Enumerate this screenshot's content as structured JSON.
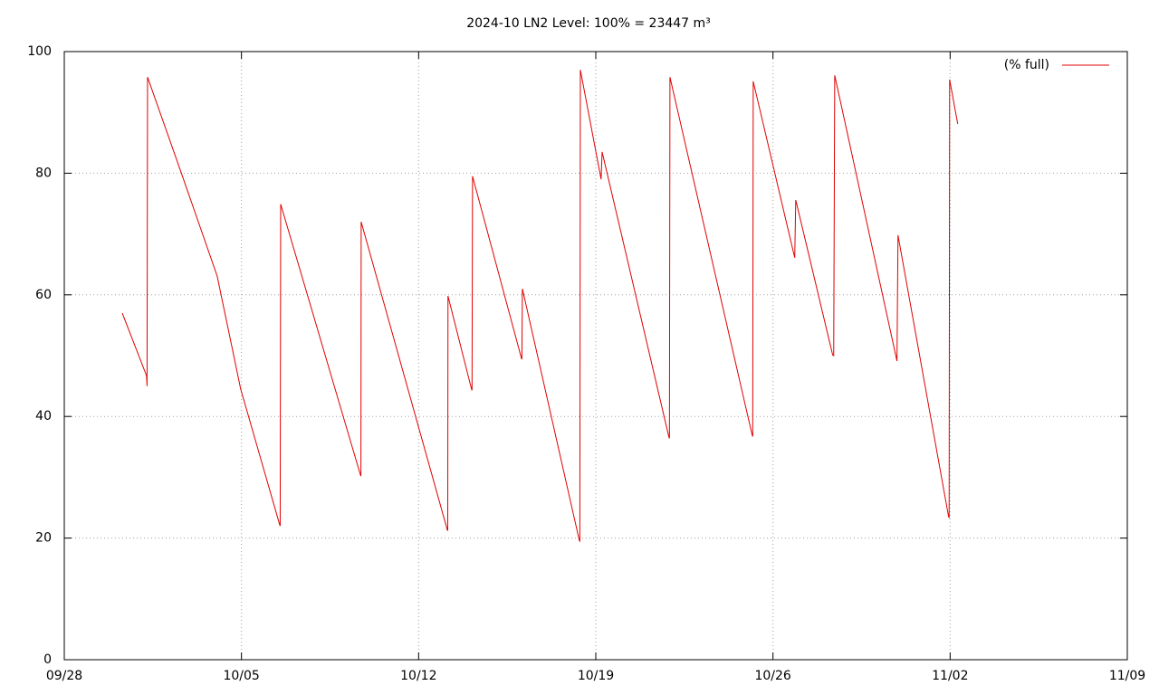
{
  "chart_data": {
    "type": "line",
    "title": "2024-10 LN2 Level: 100% = 23447 m³",
    "x": [
      2.29,
      3.25,
      3.27,
      3.29,
      4.61,
      6.04,
      6.97,
      8.51,
      8.53,
      8.55,
      11.7,
      11.72,
      11.73,
      15.13,
      15.15,
      15.16,
      16.09,
      16.11,
      16.13,
      18.06,
      18.08,
      18.1,
      20.35,
      20.37,
      20.39,
      21.21,
      21.25,
      23.89,
      23.91,
      23.93,
      27.18,
      27.2,
      27.22,
      28.86,
      28.9,
      30.36,
      30.4,
      30.44,
      32.9,
      32.94,
      34.94,
      34.96,
      34.98,
      35.3
    ],
    "series": [
      {
        "name": "(% full)",
        "color": "#e00000",
        "values": [
          57.0,
          46.7,
          45.0,
          95.8,
          80.2,
          63.1,
          44.5,
          22.2,
          22.0,
          74.9,
          30.4,
          30.2,
          72.0,
          21.4,
          21.2,
          59.8,
          44.5,
          44.3,
          79.5,
          49.6,
          49.4,
          61.0,
          19.6,
          19.5,
          97.0,
          79.0,
          83.5,
          36.6,
          36.4,
          95.8,
          36.9,
          36.7,
          95.1,
          66.1,
          75.6,
          50.1,
          50.0,
          96.1,
          49.1,
          69.8,
          23.5,
          23.4,
          95.4,
          88.1
        ]
      }
    ],
    "xlim": [
      0,
      42
    ],
    "xticks": [
      {
        "value": 0,
        "label": "09/28"
      },
      {
        "value": 7,
        "label": "10/05"
      },
      {
        "value": 14,
        "label": "10/12"
      },
      {
        "value": 21,
        "label": "10/19"
      },
      {
        "value": 28,
        "label": "10/26"
      },
      {
        "value": 35,
        "label": "11/02"
      },
      {
        "value": 42,
        "label": "11/09"
      }
    ],
    "ylim": [
      0,
      100
    ],
    "yticks": [
      0,
      20,
      40,
      60,
      80,
      100
    ],
    "grid": true,
    "legend": "top-right"
  }
}
